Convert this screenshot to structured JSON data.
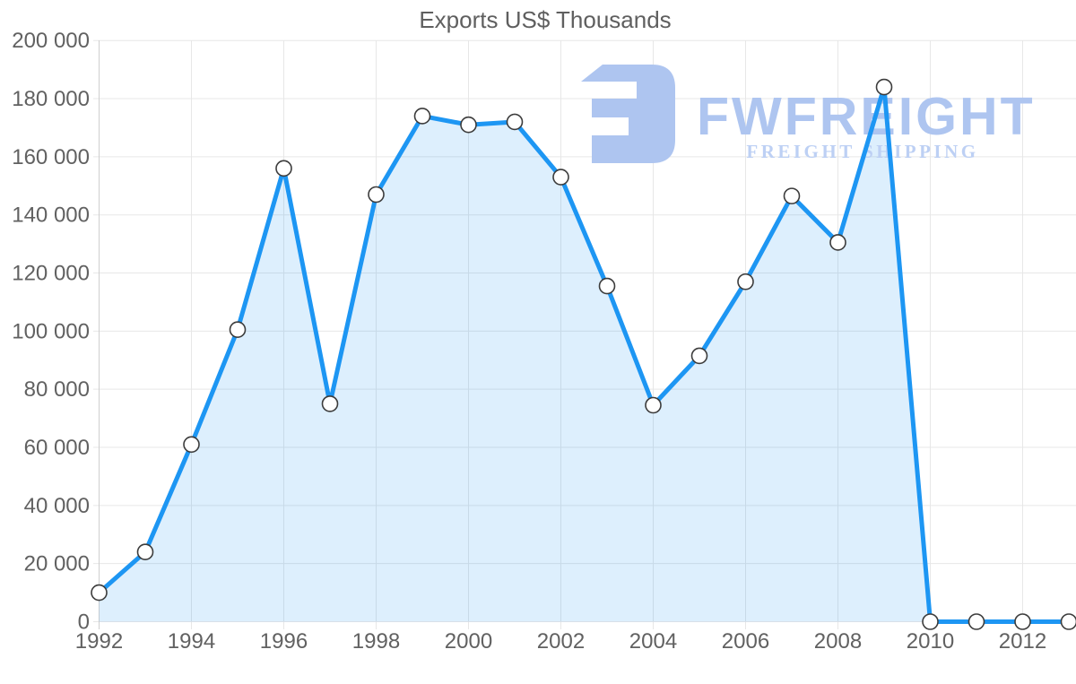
{
  "chart_data": {
    "type": "area",
    "title": "Exports US$ Thousands",
    "xlabel": "",
    "ylabel": "",
    "x": [
      1992,
      1993,
      1994,
      1995,
      1996,
      1997,
      1998,
      1999,
      2000,
      2001,
      2002,
      2003,
      2004,
      2005,
      2006,
      2007,
      2008,
      2009,
      2010,
      2011,
      2012,
      2013
    ],
    "series": [
      {
        "name": "Exports US$ Thousands",
        "values": [
          10000,
          24000,
          61000,
          100500,
          156000,
          75000,
          147000,
          174000,
          171000,
          172000,
          153000,
          115500,
          74500,
          91500,
          117000,
          146500,
          130500,
          184000,
          0,
          0,
          0,
          0
        ]
      }
    ],
    "ylim": [
      0,
      200000
    ],
    "y_ticks": [
      0,
      20000,
      40000,
      60000,
      80000,
      100000,
      120000,
      140000,
      160000,
      180000,
      200000
    ],
    "y_tick_labels": [
      "0",
      "20 000",
      "40 000",
      "60 000",
      "80 000",
      "100 000",
      "120 000",
      "140 000",
      "160 000",
      "180 000",
      "200 000"
    ],
    "x_tick_labels": [
      "1992",
      "1994",
      "1996",
      "1998",
      "2000",
      "2002",
      "2004",
      "2006",
      "2008",
      "2010",
      "2012"
    ],
    "grid": true,
    "legend": "none",
    "colors": {
      "line": "#1d96f3",
      "fill": "#1d96f3",
      "fill_opacity": "0.15",
      "marker_fill": "#ffffff",
      "marker_stroke": "#3c3c3c",
      "gridline": "#e7e7e7",
      "axis_line": "#cfcfcf",
      "tick_label": "#616161",
      "title": "#5f5f5f"
    }
  },
  "watermark": {
    "brand": "FWFREIGHT",
    "tagline": "FREIGHT SHIPPING",
    "color": "#aec5f0",
    "tagline_color": "#bdd0f4"
  }
}
